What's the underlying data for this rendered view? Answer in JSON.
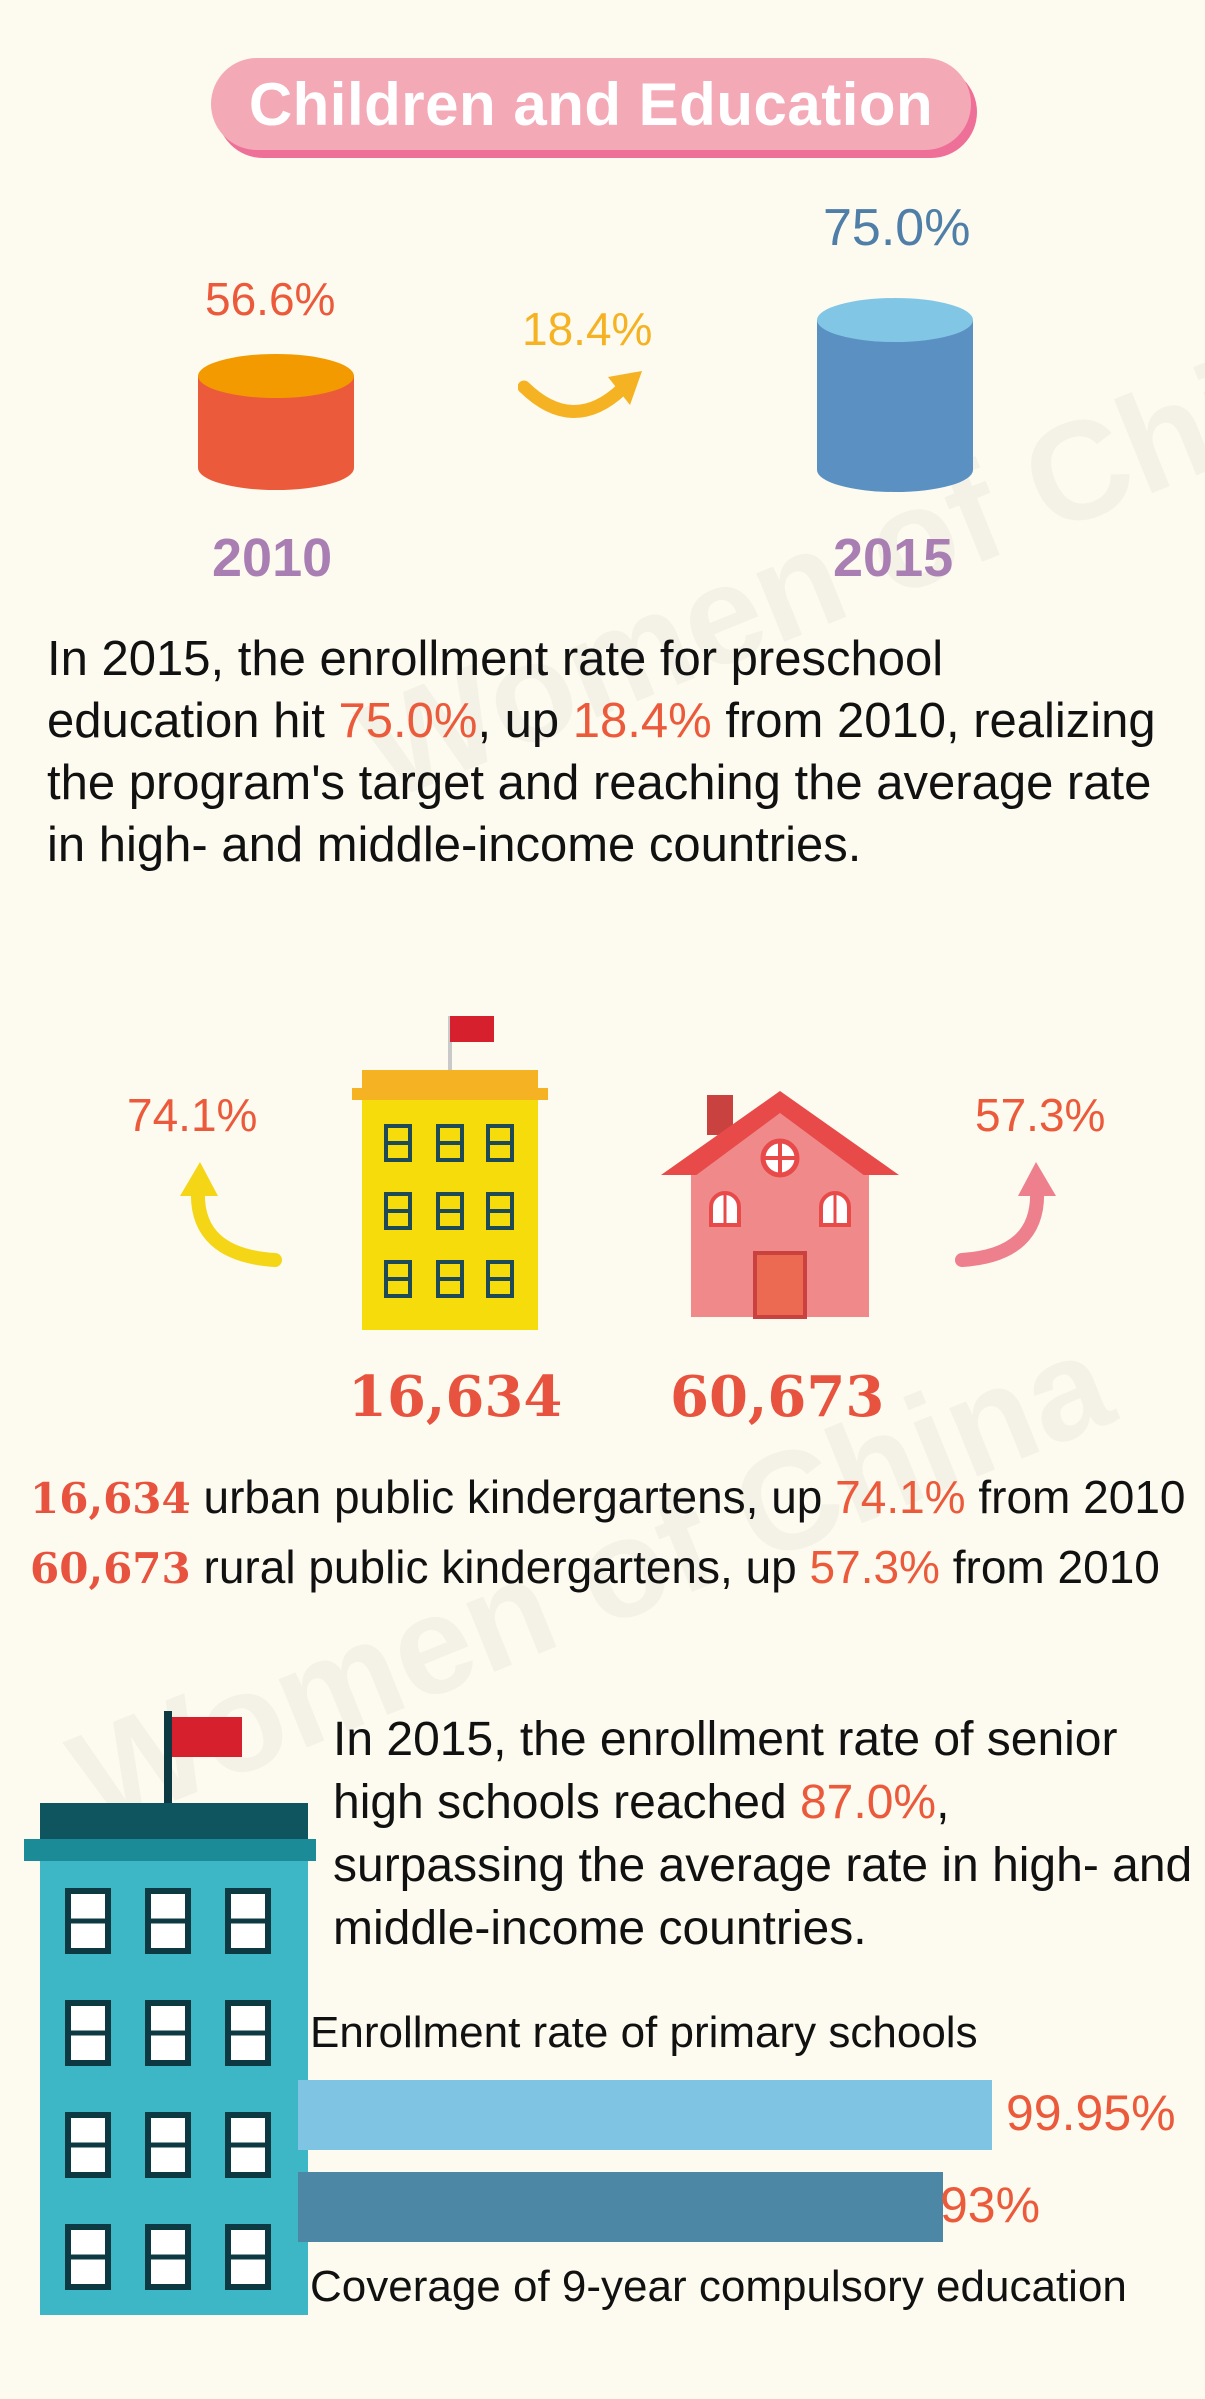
{
  "title": "Children and Education",
  "watermark": "Women of China",
  "preschool": {
    "rate_2010": "56.6%",
    "rate_2015": "75.0%",
    "increase": "18.4%",
    "year_2010": "2010",
    "year_2015": "2015",
    "paragraph": {
      "p1": "In 2015, the enrollment rate for preschool education hit ",
      "v1": "75.0%",
      "p2": ", up ",
      "v2": "18.4%",
      "p3": " from 2010, realizing the program's target and reaching the average rate in high- and middle-income countries."
    }
  },
  "kindergartens": {
    "urban_growth": "74.1%",
    "rural_growth": "57.3%",
    "urban_count": "16,634",
    "rural_count": "60,673",
    "urban_line": {
      "num": "16,634",
      "text1": " urban public kindergartens, up ",
      "pct": "74.1%",
      "text2": " from 2010"
    },
    "rural_line": {
      "num": "60,673",
      "text1": " rural public kindergartens, up ",
      "pct": "57.3%",
      "text2": " from 2010"
    }
  },
  "senior_high": {
    "p1": "In 2015, the enrollment rate of senior high schools reached ",
    "v1": "87.0%",
    "p2": ", surpassing the average rate in high- and middle-income countries."
  },
  "bars": {
    "primary_label": "Enrollment rate of primary schools",
    "primary_value": "99.95%",
    "primary_fraction": 0.9995,
    "compulsory_label": "Coverage of 9-year compulsory education",
    "compulsory_value": "93%",
    "compulsory_fraction": 0.93
  },
  "colors": {
    "orange": "#ec5a3c",
    "blue_text": "#4f7fa8",
    "yellow": "#f5b223",
    "purple": "#a97fb3",
    "light_blue_bar": "#7fc4e2",
    "dark_blue_bar": "#4d87a6"
  }
}
